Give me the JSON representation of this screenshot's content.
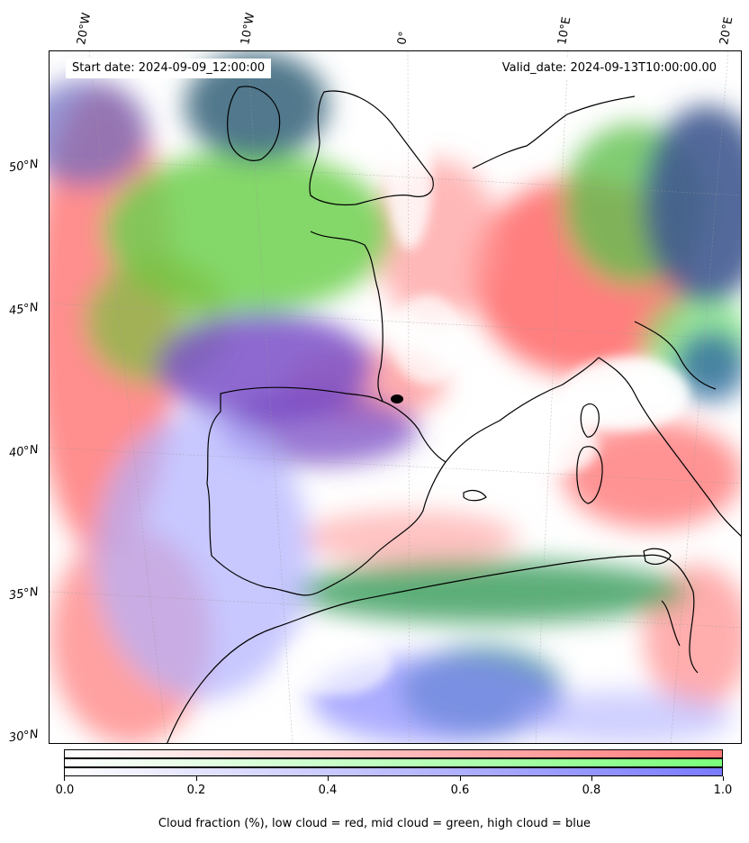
{
  "header": {
    "start_date": "Start date: 2024-09-09_12:00:00",
    "valid_date": "Valid_date: 2024-09-13T10:00:00.00"
  },
  "longitude_labels": [
    "20°W",
    "10°W",
    "0°",
    "10°E",
    "20°E"
  ],
  "latitude_labels": [
    "50°N",
    "45°N",
    "40°N",
    "35°N",
    "30°N"
  ],
  "colorbar": {
    "ticks": [
      "0.0",
      "0.2",
      "0.4",
      "0.6",
      "0.8",
      "1.0"
    ],
    "rows": [
      {
        "name": "low",
        "color": "#ff7a7a"
      },
      {
        "name": "mid",
        "color": "#7aff7a"
      },
      {
        "name": "high",
        "color": "#7a7aff"
      }
    ],
    "caption": "Cloud fraction (%), low cloud = red, mid cloud = green, high cloud = blue"
  },
  "colors": {
    "low_cloud": "#ff7a7a",
    "mid_cloud": "#7aff7a",
    "high_cloud": "#7a7aff",
    "coastline": "#000000"
  }
}
